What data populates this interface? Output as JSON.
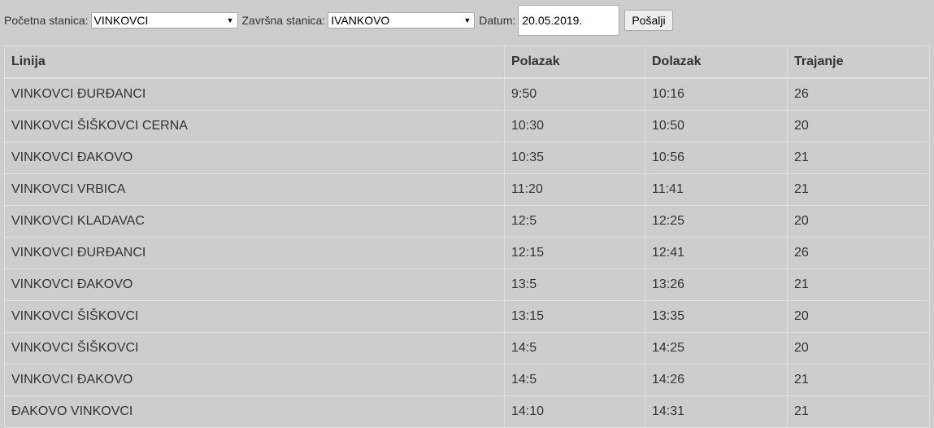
{
  "form": {
    "start_label": "Početna stanica:",
    "start_value": "VINKOVCI",
    "end_label": "Završna stanica:",
    "end_value": "IVANKOVO",
    "date_label": "Datum:",
    "date_value": "20.05.2019.",
    "submit_label": "Pošalji"
  },
  "table": {
    "headers": [
      "Linija",
      "Polazak",
      "Dolazak",
      "Trajanje"
    ],
    "rows": [
      [
        "VINKOVCI ĐURĐANCI",
        "9:50",
        "10:16",
        "26"
      ],
      [
        "VINKOVCI ŠIŠKOVCI CERNA",
        "10:30",
        "10:50",
        "20"
      ],
      [
        "VINKOVCI ĐAKOVO",
        "10:35",
        "10:56",
        "21"
      ],
      [
        "VINKOVCI VRBICA",
        "11:20",
        "11:41",
        "21"
      ],
      [
        "VINKOVCI KLADAVAC",
        "12:5",
        "12:25",
        "20"
      ],
      [
        "VINKOVCI ĐURĐANCI",
        "12:15",
        "12:41",
        "26"
      ],
      [
        "VINKOVCI ĐAKOVO",
        "13:5",
        "13:26",
        "21"
      ],
      [
        "VINKOVCI ŠIŠKOVCI",
        "13:15",
        "13:35",
        "20"
      ],
      [
        "VINKOVCI ŠIŠKOVCI",
        "14:5",
        "14:25",
        "20"
      ],
      [
        "VINKOVCI ĐAKOVO",
        "14:5",
        "14:26",
        "21"
      ],
      [
        "ĐAKOVO VINKOVCI",
        "14:10",
        "14:31",
        "21"
      ]
    ]
  }
}
